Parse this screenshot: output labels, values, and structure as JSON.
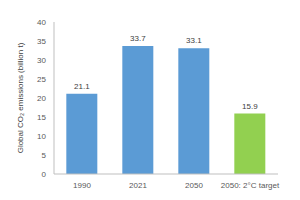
{
  "chart_data": {
    "type": "bar",
    "y_label": "Global CO₂ emissions (billion t)",
    "categories": [
      "1990",
      "2021",
      "2050",
      "2050: 2°C target"
    ],
    "values": [
      21.1,
      33.7,
      33.1,
      15.9
    ],
    "colors": [
      "#5b9bd5",
      "#5b9bd5",
      "#5b9bd5",
      "#92d050"
    ],
    "ylim": [
      0,
      40
    ],
    "yticks": [
      0,
      5,
      10,
      15,
      20,
      25,
      30,
      35,
      40
    ],
    "grid": false,
    "data_labels": true
  }
}
